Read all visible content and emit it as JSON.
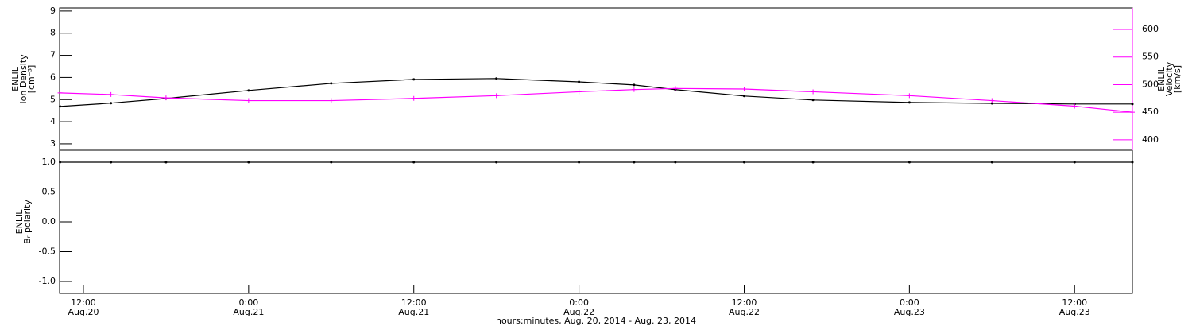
{
  "chart_data": [
    {
      "type": "line",
      "ylabel": [
        "ENLIL",
        "Ion Density",
        "[cm⁻³]"
      ],
      "y2label": [
        "ENLIL",
        "Velocity",
        "[km/s]"
      ],
      "x": [
        10.3,
        14,
        18,
        24,
        30,
        36,
        42,
        48,
        52,
        55,
        60,
        65,
        72,
        78,
        84,
        88.2
      ],
      "xlim": [
        10.27,
        88.2
      ],
      "ylim": [
        2.71,
        9.14
      ],
      "yticks": [
        3,
        4,
        5,
        6,
        7,
        8,
        9
      ],
      "y2lim": [
        381,
        639
      ],
      "y2ticks": [
        400,
        450,
        500,
        550,
        600
      ],
      "series": [
        {
          "color": "#000000",
          "values": [
            4.69,
            4.84,
            5.05,
            5.41,
            5.73,
            5.91,
            5.95,
            5.8,
            5.66,
            5.45,
            5.16,
            4.98,
            4.87,
            4.83,
            4.8,
            4.8
          ]
        },
        {
          "color": "#ff00ff",
          "axis": "y2",
          "values": [
            485,
            482,
            476,
            471,
            471,
            475,
            480,
            487,
            491,
            493,
            492,
            487,
            480,
            471,
            461,
            450
          ]
        }
      ]
    },
    {
      "type": "line",
      "ylabel": [
        "ENLIL",
        "Bᵣ polarity"
      ],
      "xlabel": "hours:minutes, Aug. 20, 2014 - Aug. 23, 2014",
      "x": [
        10.3,
        14,
        18,
        24,
        30,
        36,
        42,
        48,
        52,
        55,
        60,
        65,
        72,
        78,
        84,
        88.2
      ],
      "xlim": [
        10.27,
        88.2
      ],
      "xticks": [
        {
          "value": 12,
          "label": "12:00"
        },
        {
          "value": 24,
          "label": "0:00"
        },
        {
          "value": 36,
          "label": "12:00"
        },
        {
          "value": 48,
          "label": "0:00"
        },
        {
          "value": 60,
          "label": "12:00"
        },
        {
          "value": 72,
          "label": "0:00"
        },
        {
          "value": 84,
          "label": "12:00"
        }
      ],
      "x_date_labels": [
        "Aug.20",
        "Aug.21",
        "Aug.21",
        "Aug.22",
        "Aug.22",
        "Aug.23",
        "Aug.23"
      ],
      "ylim": [
        -1.2,
        1.2
      ],
      "yticks": [
        {
          "value": -1,
          "label": "-1.0"
        },
        {
          "value": -0.5,
          "label": "-0.5"
        },
        {
          "value": 0,
          "label": "0.0"
        },
        {
          "value": 0.5,
          "label": "0.5"
        },
        {
          "value": 1,
          "label": "1.0"
        }
      ],
      "series": [
        {
          "color": "#000000",
          "values": [
            1,
            1,
            1,
            1,
            1,
            1,
            1,
            1,
            1,
            1,
            1,
            1,
            1,
            1,
            1,
            1
          ]
        }
      ]
    }
  ]
}
